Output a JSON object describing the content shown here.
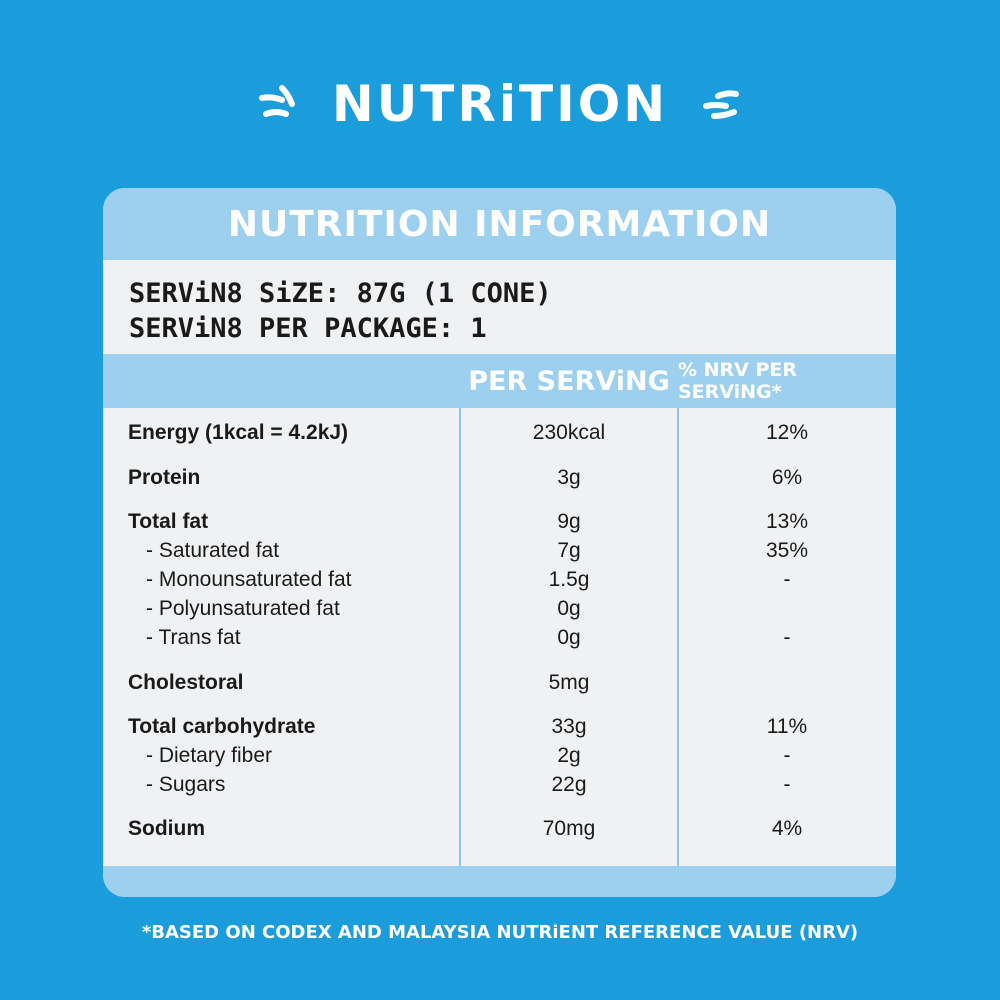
{
  "heading": "NUTRiTION",
  "table_title": "NUTRITION INFORMATION",
  "serving_size": "SERViN8 SiZE: 87G (1 CONE)",
  "servings_per_package": "SERViN8 PER PACKAGE: 1",
  "columns": {
    "per_serving": "PER SERViNG",
    "nrv": "% NRV PER SERViNG*"
  },
  "rows": [
    {
      "label": "Energy (1kcal = 4.2kJ)",
      "per_serving": "230kcal",
      "nrv": "12%",
      "style": "bold"
    },
    {
      "label": "Protein",
      "per_serving": "3g",
      "nrv": "6%",
      "style": "bold"
    },
    {
      "label": "Total fat",
      "per_serving": "9g",
      "nrv": "13%",
      "style": "bold"
    },
    {
      "label": "- Saturated fat",
      "per_serving": "7g",
      "nrv": "35%",
      "style": "sub"
    },
    {
      "label": "- Monounsaturated fat",
      "per_serving": "1.5g",
      "nrv": "-",
      "style": "sub"
    },
    {
      "label": "- Polyunsaturated fat",
      "per_serving": "0g",
      "nrv": "",
      "style": "sub"
    },
    {
      "label": "- Trans fat",
      "per_serving": "0g",
      "nrv": "-",
      "style": "sub"
    },
    {
      "label": "Cholestoral",
      "per_serving": "5mg",
      "nrv": "",
      "style": "bold"
    },
    {
      "label": "Total carbohydrate",
      "per_serving": "33g",
      "nrv": "11%",
      "style": "bold"
    },
    {
      "label": "- Dietary fiber",
      "per_serving": "2g",
      "nrv": "-",
      "style": "sub"
    },
    {
      "label": "- Sugars",
      "per_serving": "22g",
      "nrv": "-",
      "style": "sub"
    },
    {
      "label": "Sodium",
      "per_serving": "70mg",
      "nrv": "4%",
      "style": "bold"
    }
  ],
  "footnote": "*BASED ON CODEX AND MALAYSIA NUTRiENT REFERENCE VALUE (NRV)",
  "colors": {
    "background": "#1b9ddc",
    "header_band": "#9dcfef",
    "table_body": "#f0f1f3",
    "text": "#1a1a1a"
  }
}
